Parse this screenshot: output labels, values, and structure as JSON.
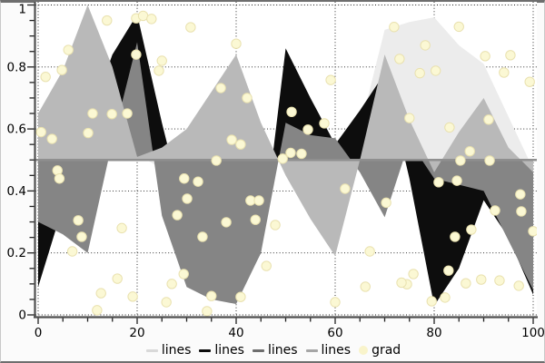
{
  "figure": {
    "background": "#fbfbfb",
    "plot_background": "#ffffff",
    "border_color": "#6e6e6e",
    "spine_color": "#4f4f4f",
    "grid_color": "#1a1a1a"
  },
  "chart_data": {
    "type": "area",
    "title": "",
    "xlabel": "",
    "ylabel": "",
    "baseline": 0.5,
    "baseline_color": "#8f8f8f",
    "x": [
      0,
      5,
      10,
      15,
      20,
      25,
      30,
      35,
      40,
      45,
      50,
      55,
      60,
      65,
      70,
      75,
      80,
      85,
      90,
      95,
      100
    ],
    "series": [
      {
        "name": "lines",
        "color": "#ececec",
        "values": [
          0.52,
          0.48,
          0.55,
          0.5,
          0.52,
          0.47,
          0.54,
          0.5,
          0.52,
          0.48,
          0.53,
          0.5,
          0.56,
          0.6,
          0.92,
          0.945,
          0.96,
          0.87,
          0.81,
          0.64,
          0.47
        ]
      },
      {
        "name": "lines",
        "color": "#0d0d0d",
        "values": [
          0.09,
          0.35,
          0.62,
          0.84,
          0.97,
          0.62,
          0.3,
          0.1,
          0.05,
          0.2,
          0.86,
          0.7,
          0.55,
          0.66,
          0.78,
          0.44,
          0.03,
          0.15,
          0.37,
          0.25,
          0.065
        ]
      },
      {
        "name": "lines",
        "color": "#858585",
        "values": [
          0.3,
          0.26,
          0.2,
          0.56,
          0.88,
          0.32,
          0.09,
          0.05,
          0.035,
          0.2,
          0.62,
          0.58,
          0.57,
          0.46,
          0.315,
          0.56,
          0.44,
          0.42,
          0.4,
          0.24,
          0.08
        ]
      },
      {
        "name": "lines",
        "color": "#b9b9b9",
        "values": [
          0.65,
          0.79,
          1.0,
          0.8,
          0.51,
          0.54,
          0.6,
          0.72,
          0.84,
          0.62,
          0.45,
          0.31,
          0.19,
          0.5,
          0.84,
          0.63,
          0.46,
          0.59,
          0.7,
          0.54,
          0.46
        ]
      }
    ],
    "scatter": {
      "name": "grad",
      "fill": "#fbf8d4",
      "edge": "#e9e1af",
      "radius": 5.2,
      "points": [
        [
          13.9,
          0.95
        ],
        [
          19.8,
          0.957
        ],
        [
          21.2,
          0.965
        ],
        [
          22.9,
          0.955
        ],
        [
          30.8,
          0.928
        ],
        [
          85,
          0.93
        ],
        [
          71.9,
          0.929
        ],
        [
          6.1,
          0.855
        ],
        [
          19.8,
          0.84
        ],
        [
          25,
          0.82
        ],
        [
          4.8,
          0.79
        ],
        [
          24.4,
          0.788
        ],
        [
          1.5,
          0.768
        ],
        [
          40,
          0.875
        ],
        [
          78.2,
          0.87
        ],
        [
          73,
          0.826
        ],
        [
          77.1,
          0.78
        ],
        [
          80.3,
          0.788
        ],
        [
          90.3,
          0.835
        ],
        [
          95.4,
          0.838
        ],
        [
          94.1,
          0.782
        ],
        [
          99.3,
          0.752
        ],
        [
          59.1,
          0.758
        ],
        [
          36.9,
          0.732
        ],
        [
          42.2,
          0.7
        ],
        [
          11,
          0.65
        ],
        [
          14.9,
          0.648
        ],
        [
          18,
          0.65
        ],
        [
          0.6,
          0.59
        ],
        [
          10.1,
          0.587
        ],
        [
          2.8,
          0.568
        ],
        [
          51.2,
          0.655
        ],
        [
          54.5,
          0.598
        ],
        [
          57.8,
          0.618
        ],
        [
          75,
          0.635
        ],
        [
          83.1,
          0.605
        ],
        [
          91,
          0.63
        ],
        [
          39.1,
          0.565
        ],
        [
          40.9,
          0.55
        ],
        [
          3.9,
          0.466
        ],
        [
          4.3,
          0.44
        ],
        [
          36,
          0.498
        ],
        [
          49.4,
          0.504
        ],
        [
          51,
          0.523
        ],
        [
          53.2,
          0.52
        ],
        [
          85.3,
          0.498
        ],
        [
          87.2,
          0.528
        ],
        [
          91.2,
          0.498
        ],
        [
          62,
          0.407
        ],
        [
          29.5,
          0.44
        ],
        [
          32.3,
          0.43
        ],
        [
          84.6,
          0.433
        ],
        [
          80.9,
          0.428
        ],
        [
          70.3,
          0.362
        ],
        [
          42.9,
          0.369
        ],
        [
          44.6,
          0.369
        ],
        [
          43.9,
          0.307
        ],
        [
          38,
          0.299
        ],
        [
          33.2,
          0.252
        ],
        [
          30.1,
          0.375
        ],
        [
          28.1,
          0.322
        ],
        [
          47.9,
          0.29
        ],
        [
          97.4,
          0.389
        ],
        [
          97.6,
          0.334
        ],
        [
          100,
          0.27
        ],
        [
          92.3,
          0.337
        ],
        [
          84.2,
          0.252
        ],
        [
          87.5,
          0.275
        ],
        [
          67,
          0.205
        ],
        [
          8.1,
          0.305
        ],
        [
          8.8,
          0.252
        ],
        [
          6.9,
          0.205
        ],
        [
          16.9,
          0.28
        ],
        [
          16,
          0.117
        ],
        [
          12.7,
          0.07
        ],
        [
          11.9,
          0.015
        ],
        [
          19.1,
          0.059
        ],
        [
          25.9,
          0.041
        ],
        [
          27,
          0.1
        ],
        [
          29.4,
          0.132
        ],
        [
          34.1,
          0.012
        ],
        [
          35,
          0.061
        ],
        [
          40.9,
          0.058
        ],
        [
          46.1,
          0.158
        ],
        [
          60,
          0.041
        ],
        [
          66.1,
          0.091
        ],
        [
          74.5,
          0.099
        ],
        [
          79.5,
          0.044
        ],
        [
          82.2,
          0.056
        ],
        [
          82.9,
          0.143
        ],
        [
          86.4,
          0.102
        ],
        [
          93.2,
          0.111
        ],
        [
          97.1,
          0.094
        ],
        [
          75.8,
          0.132
        ],
        [
          73.4,
          0.104
        ],
        [
          89.5,
          0.114
        ]
      ]
    },
    "axes": {
      "xlim": [
        -0.55,
        100.73
      ],
      "ylim": [
        -0.006,
        1.01
      ],
      "x_major": [
        0,
        20,
        40,
        60,
        80,
        100
      ],
      "x_tick_labels": [
        "0",
        "20",
        "40",
        "60",
        "80",
        "100"
      ],
      "x_minor_step": 5,
      "y_major": [
        0,
        0.2,
        0.4,
        0.6,
        0.8,
        1
      ],
      "y_tick_labels": [
        "0",
        "0.2",
        "0.4",
        "0.6",
        "0.8",
        "1"
      ],
      "y_minor_step": 0.05,
      "grid": true,
      "x_gridlines": [
        0,
        20,
        40,
        60,
        80,
        100
      ],
      "y_gridlines": [
        0,
        0.2,
        0.4,
        0.6,
        0.8,
        1
      ]
    }
  },
  "legend": {
    "position": "bottom-center",
    "items": [
      {
        "label": "lines",
        "color": "#d9d9d9",
        "type": "line"
      },
      {
        "label": "lines",
        "color": "#0d0d0d",
        "type": "line"
      },
      {
        "label": "lines",
        "color": "#6e6e6e",
        "type": "line"
      },
      {
        "label": "lines",
        "color": "#a6a6a6",
        "type": "line"
      },
      {
        "label": "grad",
        "color": "#f9f4cb",
        "type": "dot"
      }
    ]
  }
}
